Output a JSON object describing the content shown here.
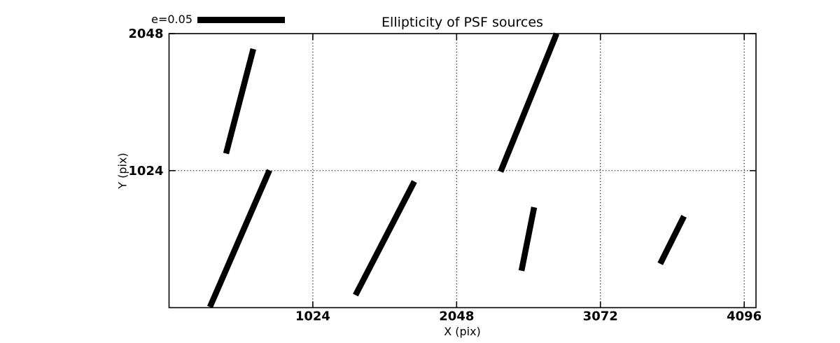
{
  "figure": {
    "background_color": "#ffffff",
    "foreground_color": "#000000"
  },
  "chart_data": {
    "type": "line",
    "subtype": "psf-ellipticity-whisker-map",
    "title": "Ellipticity of PSF sources",
    "xlabel": "X (pix)",
    "ylabel": "Y (pix)",
    "xlim": [
      0,
      4180
    ],
    "ylim": [
      0,
      2048
    ],
    "xticks": [
      1024,
      2048,
      3072,
      4096
    ],
    "yticks": [
      1024,
      2048
    ],
    "grid": true,
    "grid_style": "dotted",
    "line_color": "#000000",
    "legend": {
      "label": "e=0.05",
      "position": "top-left-outside"
    },
    "segments": [
      {
        "x1": 406,
        "y1": 1152,
        "x2": 600,
        "y2": 1933
      },
      {
        "x1": 291,
        "y1": 5,
        "x2": 715,
        "y2": 1027
      },
      {
        "x1": 1328,
        "y1": 94,
        "x2": 1747,
        "y2": 943
      },
      {
        "x1": 2361,
        "y1": 1016,
        "x2": 2760,
        "y2": 2048
      },
      {
        "x1": 2510,
        "y1": 276,
        "x2": 2600,
        "y2": 750
      },
      {
        "x1": 3498,
        "y1": 328,
        "x2": 3667,
        "y2": 683
      }
    ]
  }
}
